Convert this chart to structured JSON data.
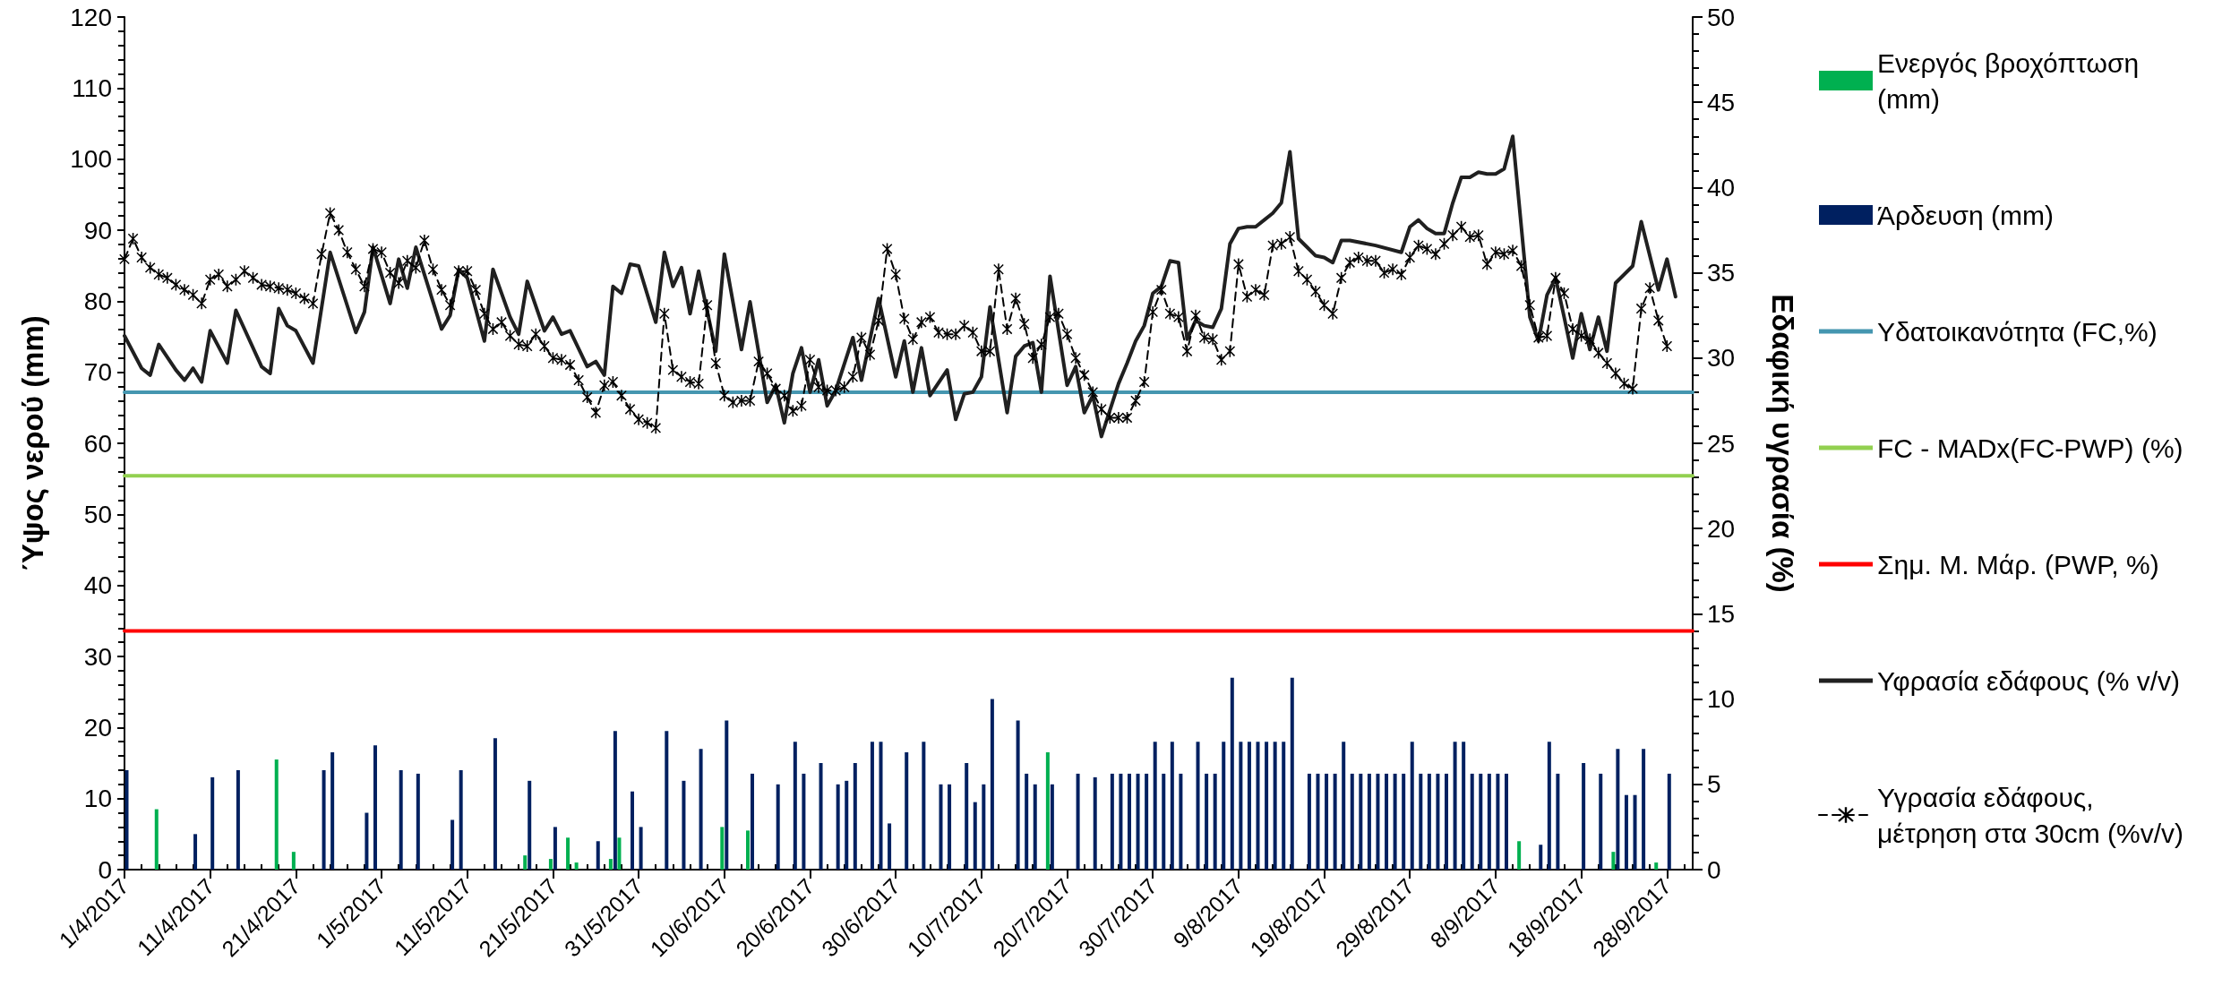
{
  "chart_data": {
    "type": "bar",
    "ylabel": "Ύψος νερού (mm)",
    "y2label": "Εδαφική υγρασία (%)",
    "legend": "right",
    "xlim": [
      "2017-04-01",
      "2017-10-01"
    ],
    "xticks": [
      {
        "value": "2017-04-01",
        "label": "1/4/2017"
      },
      {
        "value": "2017-04-03",
        "label": null
      },
      {
        "value": "2017-04-05",
        "label": null
      },
      {
        "value": "2017-04-07",
        "label": null
      },
      {
        "value": "2017-04-09",
        "label": null
      },
      {
        "value": "2017-04-11",
        "label": "11/4/2017"
      },
      {
        "value": "2017-04-13",
        "label": null
      },
      {
        "value": "2017-04-15",
        "label": null
      },
      {
        "value": "2017-04-17",
        "label": null
      },
      {
        "value": "2017-04-19",
        "label": null
      },
      {
        "value": "2017-04-21",
        "label": "21/4/2017"
      },
      {
        "value": "2017-04-23",
        "label": null
      },
      {
        "value": "2017-04-25",
        "label": null
      },
      {
        "value": "2017-04-27",
        "label": null
      },
      {
        "value": "2017-04-29",
        "label": null
      },
      {
        "value": "2017-05-01",
        "label": "1/5/2017"
      },
      {
        "value": "2017-05-03",
        "label": null
      },
      {
        "value": "2017-05-05",
        "label": null
      },
      {
        "value": "2017-05-07",
        "label": null
      },
      {
        "value": "2017-05-09",
        "label": null
      },
      {
        "value": "2017-05-11",
        "label": "11/5/2017"
      },
      {
        "value": "2017-05-13",
        "label": null
      },
      {
        "value": "2017-05-15",
        "label": null
      },
      {
        "value": "2017-05-17",
        "label": null
      },
      {
        "value": "2017-05-19",
        "label": null
      },
      {
        "value": "2017-05-21",
        "label": "21/5/2017"
      },
      {
        "value": "2017-05-23",
        "label": null
      },
      {
        "value": "2017-05-25",
        "label": null
      },
      {
        "value": "2017-05-27",
        "label": null
      },
      {
        "value": "2017-05-29",
        "label": null
      },
      {
        "value": "2017-05-31",
        "label": "31/5/2017"
      },
      {
        "value": "2017-06-02",
        "label": null
      },
      {
        "value": "2017-06-04",
        "label": null
      },
      {
        "value": "2017-06-06",
        "label": null
      },
      {
        "value": "2017-06-08",
        "label": null
      },
      {
        "value": "2017-06-10",
        "label": "10/6/2017"
      },
      {
        "value": "2017-06-12",
        "label": null
      },
      {
        "value": "2017-06-14",
        "label": null
      },
      {
        "value": "2017-06-16",
        "label": null
      },
      {
        "value": "2017-06-18",
        "label": null
      },
      {
        "value": "2017-06-20",
        "label": "20/6/2017"
      },
      {
        "value": "2017-06-22",
        "label": null
      },
      {
        "value": "2017-06-24",
        "label": null
      },
      {
        "value": "2017-06-26",
        "label": null
      },
      {
        "value": "2017-06-28",
        "label": null
      },
      {
        "value": "2017-06-30",
        "label": "30/6/2017"
      },
      {
        "value": "2017-07-02",
        "label": null
      },
      {
        "value": "2017-07-04",
        "label": null
      },
      {
        "value": "2017-07-06",
        "label": null
      },
      {
        "value": "2017-07-08",
        "label": null
      },
      {
        "value": "2017-07-10",
        "label": "10/7/2017"
      },
      {
        "value": "2017-07-12",
        "label": null
      },
      {
        "value": "2017-07-14",
        "label": null
      },
      {
        "value": "2017-07-16",
        "label": null
      },
      {
        "value": "2017-07-18",
        "label": null
      },
      {
        "value": "2017-07-20",
        "label": "20/7/2017"
      },
      {
        "value": "2017-07-22",
        "label": null
      },
      {
        "value": "2017-07-24",
        "label": null
      },
      {
        "value": "2017-07-26",
        "label": null
      },
      {
        "value": "2017-07-28",
        "label": null
      },
      {
        "value": "2017-07-30",
        "label": "30/7/2017"
      },
      {
        "value": "2017-08-01",
        "label": null
      },
      {
        "value": "2017-08-03",
        "label": null
      },
      {
        "value": "2017-08-05",
        "label": null
      },
      {
        "value": "2017-08-07",
        "label": null
      },
      {
        "value": "2017-08-09",
        "label": "9/8/2017"
      },
      {
        "value": "2017-08-11",
        "label": null
      },
      {
        "value": "2017-08-13",
        "label": null
      },
      {
        "value": "2017-08-15",
        "label": null
      },
      {
        "value": "2017-08-17",
        "label": null
      },
      {
        "value": "2017-08-19",
        "label": "19/8/2017"
      },
      {
        "value": "2017-08-21",
        "label": null
      },
      {
        "value": "2017-08-23",
        "label": null
      },
      {
        "value": "2017-08-25",
        "label": null
      },
      {
        "value": "2017-08-27",
        "label": null
      },
      {
        "value": "2017-08-29",
        "label": "29/8/2017"
      },
      {
        "value": "2017-08-31",
        "label": null
      },
      {
        "value": "2017-09-02",
        "label": null
      },
      {
        "value": "2017-09-04",
        "label": null
      },
      {
        "value": "2017-09-06",
        "label": null
      },
      {
        "value": "2017-09-08",
        "label": "8/9/2017"
      },
      {
        "value": "2017-09-10",
        "label": null
      },
      {
        "value": "2017-09-12",
        "label": null
      },
      {
        "value": "2017-09-14",
        "label": null
      },
      {
        "value": "2017-09-16",
        "label": null
      },
      {
        "value": "2017-09-18",
        "label": "18/9/2017"
      },
      {
        "value": "2017-09-20",
        "label": null
      },
      {
        "value": "2017-09-22",
        "label": null
      },
      {
        "value": "2017-09-24",
        "label": null
      },
      {
        "value": "2017-09-26",
        "label": null
      },
      {
        "value": "2017-09-28",
        "label": "28/9/2017"
      },
      {
        "value": "2017-09-30",
        "label": null
      }
    ],
    "ylim": [
      0,
      120
    ],
    "yticks": [
      0,
      {
        "value": 2,
        "label": null
      },
      {
        "value": 4,
        "label": null
      },
      {
        "value": 6,
        "label": null
      },
      {
        "value": 8,
        "label": null
      },
      10,
      {
        "value": 12,
        "label": null
      },
      {
        "value": 14,
        "label": null
      },
      {
        "value": 16,
        "label": null
      },
      {
        "value": 18,
        "label": null
      },
      20,
      {
        "value": 22,
        "label": null
      },
      {
        "value": 24,
        "label": null
      },
      {
        "value": 26,
        "label": null
      },
      {
        "value": 28,
        "label": null
      },
      30,
      {
        "value": 32,
        "label": null
      },
      {
        "value": 34,
        "label": null
      },
      {
        "value": 36,
        "label": null
      },
      {
        "value": 38,
        "label": null
      },
      40,
      {
        "value": 42,
        "label": null
      },
      {
        "value": 44,
        "label": null
      },
      {
        "value": 46,
        "label": null
      },
      {
        "value": 48,
        "label": null
      },
      50,
      {
        "value": 52,
        "label": null
      },
      {
        "value": 54,
        "label": null
      },
      {
        "value": 56,
        "label": null
      },
      {
        "value": 58,
        "label": null
      },
      60,
      {
        "value": 62,
        "label": null
      },
      {
        "value": 64,
        "label": null
      },
      {
        "value": 66,
        "label": null
      },
      {
        "value": 68,
        "label": null
      },
      70,
      {
        "value": 72,
        "label": null
      },
      {
        "value": 74,
        "label": null
      },
      {
        "value": 76,
        "label": null
      },
      {
        "value": 78,
        "label": null
      },
      80,
      {
        "value": 82,
        "label": null
      },
      {
        "value": 84,
        "label": null
      },
      {
        "value": 86,
        "label": null
      },
      {
        "value": 88,
        "label": null
      },
      90,
      {
        "value": 92,
        "label": null
      },
      {
        "value": 94,
        "label": null
      },
      {
        "value": 96,
        "label": null
      },
      {
        "value": 98,
        "label": null
      },
      100,
      {
        "value": 102,
        "label": null
      },
      {
        "value": 104,
        "label": null
      },
      {
        "value": 106,
        "label": null
      },
      {
        "value": 108,
        "label": null
      },
      110,
      {
        "value": 112,
        "label": null
      },
      {
        "value": 114,
        "label": null
      },
      {
        "value": 116,
        "label": null
      },
      {
        "value": 118,
        "label": null
      },
      120
    ],
    "y2lim": [
      0,
      50
    ],
    "y2ticks": [
      0,
      {
        "value": 1,
        "label": null
      },
      {
        "value": 2,
        "label": null
      },
      {
        "value": 3,
        "label": null
      },
      {
        "value": 4,
        "label": null
      },
      5,
      {
        "value": 6,
        "label": null
      },
      {
        "value": 7,
        "label": null
      },
      {
        "value": 8,
        "label": null
      },
      {
        "value": 9,
        "label": null
      },
      10,
      {
        "value": 11,
        "label": null
      },
      {
        "value": 12,
        "label": null
      },
      {
        "value": 13,
        "label": null
      },
      {
        "value": 14,
        "label": null
      },
      15,
      {
        "value": 16,
        "label": null
      },
      {
        "value": 17,
        "label": null
      },
      {
        "value": 18,
        "label": null
      },
      {
        "value": 19,
        "label": null
      },
      20,
      {
        "value": 21,
        "label": null
      },
      {
        "value": 22,
        "label": null
      },
      {
        "value": 23,
        "label": null
      },
      {
        "value": 24,
        "label": null
      },
      25,
      {
        "value": 26,
        "label": null
      },
      {
        "value": 27,
        "label": null
      },
      {
        "value": 28,
        "label": null
      },
      {
        "value": 29,
        "label": null
      },
      30,
      {
        "value": 31,
        "label": null
      },
      {
        "value": 32,
        "label": null
      },
      {
        "value": 33,
        "label": null
      },
      {
        "value": 34,
        "label": null
      },
      35,
      {
        "value": 36,
        "label": null
      },
      {
        "value": 37,
        "label": null
      },
      {
        "value": 38,
        "label": null
      },
      {
        "value": 39,
        "label": null
      },
      40,
      {
        "value": 41,
        "label": null
      },
      {
        "value": 42,
        "label": null
      },
      {
        "value": 43,
        "label": null
      },
      {
        "value": 44,
        "label": null
      },
      45,
      {
        "value": 46,
        "label": null
      },
      {
        "value": 47,
        "label": null
      },
      {
        "value": 48,
        "label": null
      },
      {
        "value": 49,
        "label": null
      },
      50
    ],
    "series": [
      {
        "name": "Ενεργός βροχόπτωση (mm)",
        "color": "#00b050",
        "x": [
          "2017-04-05",
          "2017-04-19",
          "2017-04-21",
          "2017-05-18",
          "2017-05-21",
          "2017-05-23",
          "2017-05-24",
          "2017-05-28",
          "2017-05-29",
          "2017-06-10",
          "2017-06-13",
          "2017-07-18",
          "2017-09-11",
          "2017-09-22",
          "2017-09-27"
        ],
        "values": [
          8.5,
          15.5,
          2.5,
          2,
          1.5,
          4.5,
          1,
          1.5,
          4.5,
          6,
          5.5,
          16.5,
          4,
          2.5,
          1
        ]
      },
      {
        "name": "Άρδευση (mm)",
        "color": "#002060",
        "x": [
          "2017-04-01",
          "2017-04-09",
          "2017-04-11",
          "2017-04-14",
          "2017-04-24",
          "2017-04-25",
          "2017-04-29",
          "2017-04-30",
          "2017-05-03",
          "2017-05-05",
          "2017-05-09",
          "2017-05-10",
          "2017-05-14",
          "2017-05-18",
          "2017-05-21",
          "2017-05-26",
          "2017-05-28",
          "2017-05-30",
          "2017-05-31",
          "2017-06-03",
          "2017-06-05",
          "2017-06-07",
          "2017-06-10",
          "2017-06-13",
          "2017-06-16",
          "2017-06-18",
          "2017-06-19",
          "2017-06-21",
          "2017-06-23",
          "2017-06-24",
          "2017-06-25",
          "2017-06-27",
          "2017-06-28",
          "2017-06-29",
          "2017-07-01",
          "2017-07-03",
          "2017-07-05",
          "2017-07-06",
          "2017-07-08",
          "2017-07-09",
          "2017-07-10",
          "2017-07-11",
          "2017-07-14",
          "2017-07-15",
          "2017-07-16",
          "2017-07-18",
          "2017-07-21",
          "2017-07-23",
          "2017-07-25",
          "2017-07-26",
          "2017-07-27",
          "2017-07-28",
          "2017-07-29",
          "2017-07-30",
          "2017-07-31",
          "2017-08-01",
          "2017-08-02",
          "2017-08-04",
          "2017-08-05",
          "2017-08-06",
          "2017-08-07",
          "2017-08-08",
          "2017-08-09",
          "2017-08-10",
          "2017-08-11",
          "2017-08-12",
          "2017-08-13",
          "2017-08-14",
          "2017-08-15",
          "2017-08-17",
          "2017-08-18",
          "2017-08-19",
          "2017-08-20",
          "2017-08-21",
          "2017-08-22",
          "2017-08-23",
          "2017-08-24",
          "2017-08-25",
          "2017-08-26",
          "2017-08-27",
          "2017-08-28",
          "2017-08-29",
          "2017-08-30",
          "2017-08-31",
          "2017-09-01",
          "2017-09-02",
          "2017-09-03",
          "2017-09-04",
          "2017-09-05",
          "2017-09-06",
          "2017-09-07",
          "2017-09-08",
          "2017-09-09",
          "2017-09-13",
          "2017-09-14",
          "2017-09-15",
          "2017-09-18",
          "2017-09-20",
          "2017-09-22",
          "2017-09-23",
          "2017-09-24",
          "2017-09-25",
          "2017-09-28"
        ],
        "values": [
          14,
          5,
          13,
          14,
          14,
          16.5,
          8,
          17.5,
          14,
          13.5,
          7,
          14,
          18.5,
          12.5,
          6,
          4,
          19.5,
          11,
          6,
          19.5,
          12.5,
          17,
          21,
          13.5,
          12,
          18,
          13.5,
          15,
          12,
          12.5,
          15,
          18,
          18,
          6.5,
          16.5,
          18,
          12,
          12,
          15,
          9.5,
          12,
          24,
          21,
          13.5,
          12,
          12,
          13.5,
          13,
          13.5,
          13.5,
          13.5,
          13.5,
          13.5,
          18,
          13.5,
          18,
          13.5,
          18,
          13.5,
          13.5,
          18,
          27,
          18,
          18,
          18,
          18,
          18,
          18,
          27,
          13.5,
          13.5,
          13.5,
          13.5,
          18,
          13.5,
          13.5,
          13.5,
          13.5,
          13.5,
          13.5,
          13.5,
          18,
          13.5,
          13.5,
          13.5,
          13.5,
          18,
          18,
          13.5,
          13.5,
          13.5,
          13.5,
          13.5,
          3.5,
          18,
          13.5,
          15,
          13.5,
          17,
          10.5,
          10.5,
          17,
          13.5
        ]
      },
      {
        "name": "Υδατοικανότητα (FC,%)",
        "type": "line",
        "axis": "y2",
        "color": "#4596b0",
        "x": [
          "2017-04-01",
          "2017-10-01"
        ],
        "values": [
          28,
          28
        ]
      },
      {
        "name": "FC - MADx(FC-PWP) (%)",
        "type": "line",
        "axis": "y2",
        "color": "#92d050",
        "x": [
          "2017-04-01",
          "2017-10-01"
        ],
        "values": [
          23.1,
          23.1
        ]
      },
      {
        "name": "Σημ. Μ. Μάρ. (PWP, %)",
        "type": "line",
        "axis": "y2",
        "color": "#ff0000",
        "x": [
          "2017-04-01",
          "2017-10-01"
        ],
        "values": [
          14,
          14
        ]
      },
      {
        "name": "Υφρασία εδάφους (% v/v)",
        "type": "line",
        "axis": "y2",
        "color": "#202020",
        "x": [
          "2017-04-01",
          "2017-04-03",
          "2017-04-04",
          "2017-04-05",
          "2017-04-07",
          "2017-04-08",
          "2017-04-09",
          "2017-04-10",
          "2017-04-11",
          "2017-04-13",
          "2017-04-14",
          "2017-04-17",
          "2017-04-18",
          "2017-04-19",
          "2017-04-20",
          "2017-04-21",
          "2017-04-23",
          "2017-04-25",
          "2017-04-28",
          "2017-04-29",
          "2017-04-30",
          "2017-05-02",
          "2017-05-03",
          "2017-05-04",
          "2017-05-05",
          "2017-05-08",
          "2017-05-09",
          "2017-05-10",
          "2017-05-11",
          "2017-05-13",
          "2017-05-14",
          "2017-05-16",
          "2017-05-17",
          "2017-05-18",
          "2017-05-20",
          "2017-05-21",
          "2017-05-22",
          "2017-05-23",
          "2017-05-25",
          "2017-05-26",
          "2017-05-27",
          "2017-05-28",
          "2017-05-29",
          "2017-05-30",
          "2017-05-31",
          "2017-06-02",
          "2017-06-03",
          "2017-06-04",
          "2017-06-05",
          "2017-06-06",
          "2017-06-07",
          "2017-06-09",
          "2017-06-10",
          "2017-06-12",
          "2017-06-13",
          "2017-06-15",
          "2017-06-16",
          "2017-06-17",
          "2017-06-18",
          "2017-06-19",
          "2017-06-20",
          "2017-06-21",
          "2017-06-22",
          "2017-06-23",
          "2017-06-25",
          "2017-06-26",
          "2017-06-28",
          "2017-06-30",
          "2017-07-01",
          "2017-07-02",
          "2017-07-03",
          "2017-07-04",
          "2017-07-06",
          "2017-07-07",
          "2017-07-08",
          "2017-07-09",
          "2017-07-10",
          "2017-07-11",
          "2017-07-13",
          "2017-07-14",
          "2017-07-15",
          "2017-07-16",
          "2017-07-17",
          "2017-07-18",
          "2017-07-20",
          "2017-07-21",
          "2017-07-22",
          "2017-07-23",
          "2017-07-24",
          "2017-07-26",
          "2017-07-27",
          "2017-07-28",
          "2017-07-29",
          "2017-07-30",
          "2017-07-31",
          "2017-08-01",
          "2017-08-02",
          "2017-08-03",
          "2017-08-04",
          "2017-08-05",
          "2017-08-06",
          "2017-08-07",
          "2017-08-08",
          "2017-08-09",
          "2017-08-10",
          "2017-08-11",
          "2017-08-12",
          "2017-08-13",
          "2017-08-14",
          "2017-08-15",
          "2017-08-16",
          "2017-08-17",
          "2017-08-18",
          "2017-08-19",
          "2017-08-20",
          "2017-08-21",
          "2017-08-22",
          "2017-08-25",
          "2017-08-28",
          "2017-08-29",
          "2017-08-30",
          "2017-08-31",
          "2017-09-01",
          "2017-09-02",
          "2017-09-03",
          "2017-09-04",
          "2017-09-05",
          "2017-09-06",
          "2017-09-07",
          "2017-09-08",
          "2017-09-09",
          "2017-09-10",
          "2017-09-12",
          "2017-09-13",
          "2017-09-14",
          "2017-09-15",
          "2017-09-16",
          "2017-09-17",
          "2017-09-18",
          "2017-09-19",
          "2017-09-20",
          "2017-09-21",
          "2017-09-22",
          "2017-09-24",
          "2017-09-25",
          "2017-09-27",
          "2017-09-28",
          "2017-09-29"
        ],
        "values": [
          31.3,
          29.4,
          29.0,
          30.8,
          29.3,
          28.7,
          29.4,
          28.6,
          31.6,
          29.7,
          32.8,
          29.5,
          29.1,
          32.9,
          31.9,
          31.6,
          29.7,
          36.2,
          31.5,
          32.7,
          36.5,
          33.2,
          35.8,
          34.1,
          36.5,
          31.7,
          32.5,
          35.2,
          34.7,
          31.0,
          35.2,
          32.4,
          31.4,
          34.5,
          31.6,
          32.4,
          31.4,
          31.6,
          29.5,
          29.8,
          29.0,
          34.2,
          33.8,
          35.5,
          35.4,
          32.1,
          36.2,
          34.2,
          35.3,
          32.6,
          35.1,
          30.4,
          36.1,
          30.5,
          33.3,
          27.4,
          28.4,
          26.2,
          29.1,
          30.6,
          28.0,
          29.9,
          27.2,
          28.1,
          31.2,
          28.7,
          33.5,
          28.9,
          31.0,
          28.0,
          30.6,
          27.8,
          29.3,
          26.4,
          27.9,
          28.0,
          28.9,
          33.0,
          26.8,
          30.1,
          30.7,
          30.9,
          28.0,
          34.8,
          28.4,
          29.5,
          26.8,
          27.8,
          25.4,
          28.5,
          29.7,
          31.0,
          31.9,
          33.8,
          34.2,
          35.7,
          35.6,
          31.1,
          32.2,
          31.9,
          31.8,
          32.9,
          36.7,
          37.6,
          37.7,
          37.7,
          38.1,
          38.5,
          39.1,
          42.1,
          37.0,
          36.5,
          36.0,
          35.9,
          35.6,
          36.9,
          36.9,
          36.6,
          36.2,
          37.7,
          38.1,
          37.6,
          37.3,
          37.3,
          39.1,
          40.6,
          40.6,
          40.9,
          40.8,
          40.8,
          41.1,
          43.0,
          32.4,
          31.0,
          33.7,
          34.7,
          32.4,
          30.0,
          32.6,
          30.5,
          32.4,
          30.4,
          34.4,
          35.4,
          38.0,
          34.0,
          35.8,
          33.6
        ]
      },
      {
        "name": "Υγρασία εδάφους, μέτρηση στα 30cm (%v/v)",
        "type": "line",
        "axis": "y2",
        "color": "#000000",
        "marker": "cross",
        "line_style": "dashed",
        "x": [
          "2017-04-01",
          "2017-04-02",
          "2017-04-03",
          "2017-04-04",
          "2017-04-05",
          "2017-04-06",
          "2017-04-07",
          "2017-04-08",
          "2017-04-09",
          "2017-04-10",
          "2017-04-11",
          "2017-04-12",
          "2017-04-13",
          "2017-04-14",
          "2017-04-15",
          "2017-04-16",
          "2017-04-17",
          "2017-04-18",
          "2017-04-19",
          "2017-04-20",
          "2017-04-21",
          "2017-04-22",
          "2017-04-23",
          "2017-04-24",
          "2017-04-25",
          "2017-04-26",
          "2017-04-27",
          "2017-04-28",
          "2017-04-29",
          "2017-04-30",
          "2017-05-01",
          "2017-05-02",
          "2017-05-03",
          "2017-05-04",
          "2017-05-05",
          "2017-05-06",
          "2017-05-07",
          "2017-05-08",
          "2017-05-09",
          "2017-05-10",
          "2017-05-11",
          "2017-05-12",
          "2017-05-13",
          "2017-05-14",
          "2017-05-15",
          "2017-05-16",
          "2017-05-17",
          "2017-05-18",
          "2017-05-19",
          "2017-05-20",
          "2017-05-21",
          "2017-05-22",
          "2017-05-23",
          "2017-05-24",
          "2017-05-25",
          "2017-05-26",
          "2017-05-27",
          "2017-05-28",
          "2017-05-29",
          "2017-05-30",
          "2017-05-31",
          "2017-06-01",
          "2017-06-02",
          "2017-06-03",
          "2017-06-04",
          "2017-06-05",
          "2017-06-06",
          "2017-06-07",
          "2017-06-08",
          "2017-06-09",
          "2017-06-10",
          "2017-06-11",
          "2017-06-12",
          "2017-06-13",
          "2017-06-14",
          "2017-06-15",
          "2017-06-16",
          "2017-06-17",
          "2017-06-18",
          "2017-06-19",
          "2017-06-20",
          "2017-06-21",
          "2017-06-22",
          "2017-06-23",
          "2017-06-24",
          "2017-06-25",
          "2017-06-26",
          "2017-06-27",
          "2017-06-28",
          "2017-06-29",
          "2017-06-30",
          "2017-07-01",
          "2017-07-02",
          "2017-07-03",
          "2017-07-04",
          "2017-07-05",
          "2017-07-06",
          "2017-07-07",
          "2017-07-08",
          "2017-07-09",
          "2017-07-10",
          "2017-07-11",
          "2017-07-12",
          "2017-07-13",
          "2017-07-14",
          "2017-07-15",
          "2017-07-16",
          "2017-07-17",
          "2017-07-18",
          "2017-07-19",
          "2017-07-20",
          "2017-07-21",
          "2017-07-22",
          "2017-07-23",
          "2017-07-24",
          "2017-07-25",
          "2017-07-26",
          "2017-07-27",
          "2017-07-28",
          "2017-07-29",
          "2017-07-30",
          "2017-07-31",
          "2017-08-01",
          "2017-08-02",
          "2017-08-03",
          "2017-08-04",
          "2017-08-05",
          "2017-08-06",
          "2017-08-07",
          "2017-08-08",
          "2017-08-09",
          "2017-08-10",
          "2017-08-11",
          "2017-08-12",
          "2017-08-13",
          "2017-08-14",
          "2017-08-15",
          "2017-08-16",
          "2017-08-17",
          "2017-08-18",
          "2017-08-19",
          "2017-08-20",
          "2017-08-21",
          "2017-08-22",
          "2017-08-23",
          "2017-08-24",
          "2017-08-25",
          "2017-08-26",
          "2017-08-27",
          "2017-08-28",
          "2017-08-29",
          "2017-08-30",
          "2017-08-31",
          "2017-09-01",
          "2017-09-02",
          "2017-09-03",
          "2017-09-04",
          "2017-09-05",
          "2017-09-06",
          "2017-09-07",
          "2017-09-08",
          "2017-09-09",
          "2017-09-10",
          "2017-09-11",
          "2017-09-12",
          "2017-09-13",
          "2017-09-14",
          "2017-09-15",
          "2017-09-16",
          "2017-09-17",
          "2017-09-18",
          "2017-09-19",
          "2017-09-20",
          "2017-09-21",
          "2017-09-22",
          "2017-09-23",
          "2017-09-24",
          "2017-09-25",
          "2017-09-26",
          "2017-09-27",
          "2017-09-28"
        ],
        "values": [
          35.8,
          37.0,
          35.9,
          35.3,
          34.9,
          34.7,
          34.3,
          34.0,
          33.7,
          33.2,
          34.6,
          34.9,
          34.2,
          34.6,
          35.1,
          34.7,
          34.3,
          34.2,
          34.1,
          34.0,
          33.8,
          33.5,
          33.2,
          36.1,
          38.5,
          37.5,
          36.2,
          35.2,
          34.2,
          36.4,
          36.2,
          35.0,
          34.4,
          35.7,
          35.3,
          36.9,
          35.2,
          34.0,
          33.1,
          35.1,
          35.1,
          34.0,
          32.6,
          31.7,
          32.1,
          31.3,
          30.8,
          30.7,
          31.4,
          30.7,
          30.0,
          29.9,
          29.6,
          28.7,
          27.7,
          26.8,
          28.4,
          28.6,
          27.8,
          27.0,
          26.4,
          26.2,
          25.9,
          32.6,
          29.3,
          28.9,
          28.6,
          28.5,
          33.1,
          29.7,
          27.8,
          27.4,
          27.5,
          27.5,
          29.8,
          29.1,
          28.2,
          27.8,
          26.9,
          27.2,
          29.9,
          28.3,
          28.1,
          28.1,
          28.3,
          28.9,
          31.2,
          30.2,
          32.2,
          36.4,
          34.9,
          32.3,
          31.1,
          32.1,
          32.4,
          31.5,
          31.4,
          31.4,
          31.9,
          31.5,
          30.4,
          30.4,
          35.2,
          31.7,
          33.5,
          32.0,
          30.0,
          30.8,
          32.4,
          32.6,
          31.4,
          30.0,
          29.0,
          28.0,
          27.0,
          26.5,
          26.5,
          26.5,
          27.5,
          28.6,
          32.7,
          34.0,
          32.6,
          32.4,
          30.4,
          32.5,
          31.2,
          31.1,
          29.9,
          30.4,
          35.5,
          33.6,
          34.0,
          33.7,
          36.6,
          36.7,
          37.1,
          35.1,
          34.6,
          33.9,
          33.1,
          32.6,
          34.7,
          35.6,
          35.9,
          35.7,
          35.7,
          35.0,
          35.2,
          34.9,
          35.9,
          36.6,
          36.4,
          36.1,
          36.7,
          37.2,
          37.7,
          37.1,
          37.2,
          35.5,
          36.2,
          36.1,
          36.3,
          35.4,
          33.1,
          31.2,
          31.3,
          34.7,
          33.8,
          31.7,
          31.3,
          31.1,
          30.3,
          29.7,
          29.1,
          28.5,
          28.2,
          32.9,
          34.1,
          32.2,
          30.7
        ]
      }
    ]
  }
}
